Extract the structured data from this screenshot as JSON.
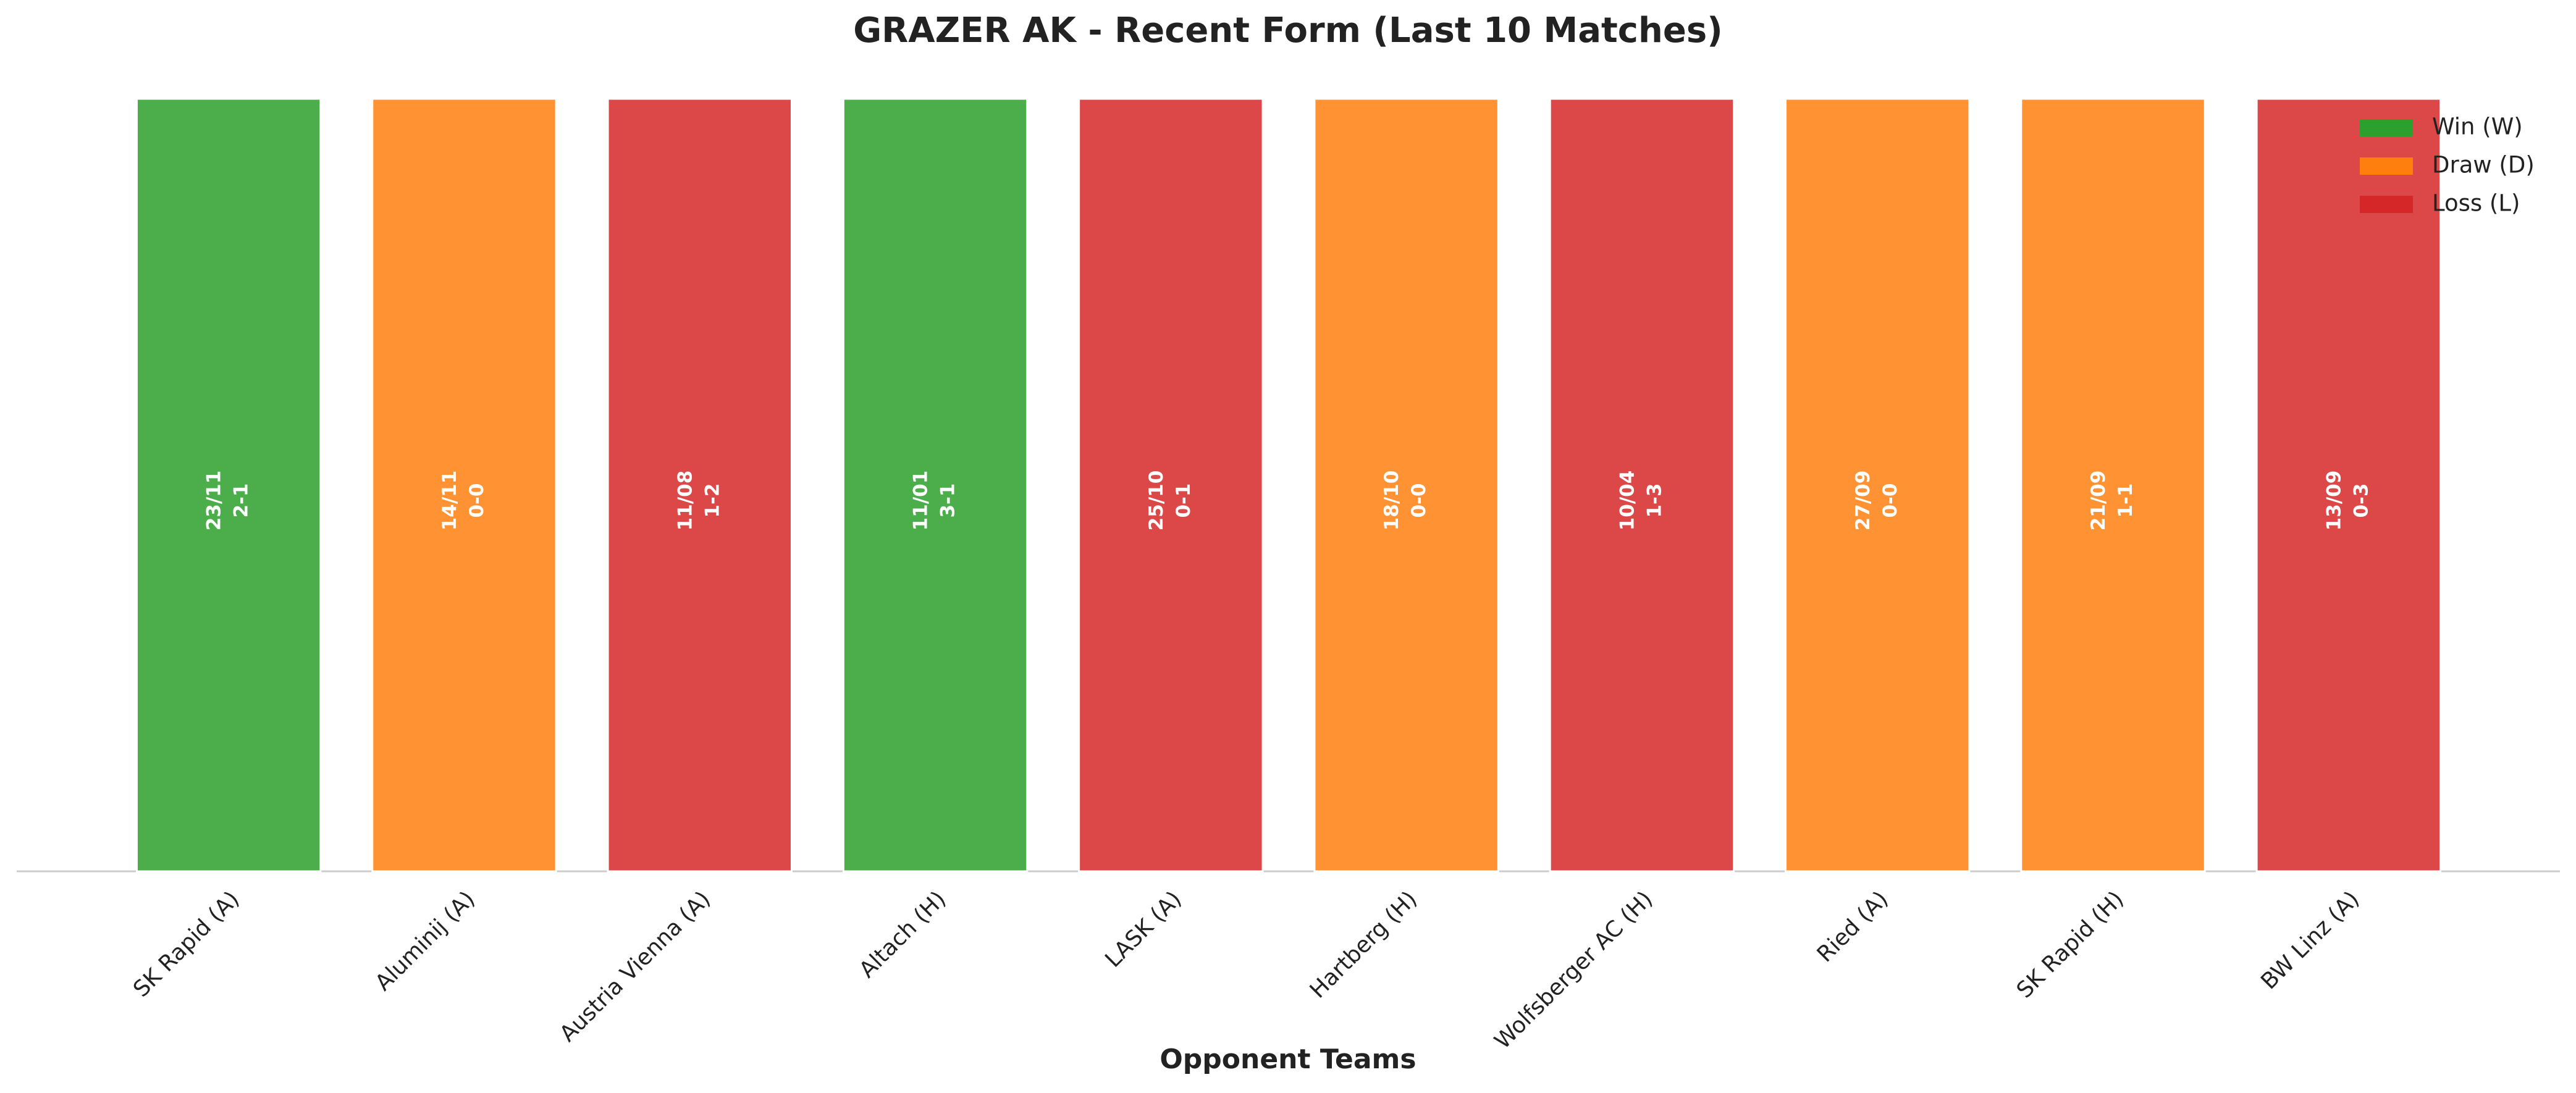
{
  "chart_data": {
    "type": "bar",
    "title": "GRAZER AK - Recent Form (Last 10 Matches)",
    "x_label": "Opponent Teams",
    "categories": [
      "SK Rapid (A)",
      "Aluminij (A)",
      "Austria Vienna (A)",
      "Altach (H)",
      "LASK (A)",
      "Hartberg (H)",
      "Wolfsberger AC (H)",
      "Ried (A)",
      "SK Rapid (H)",
      "BW Linz (A)"
    ],
    "dates": [
      "23/11",
      "14/11",
      "11/08",
      "11/01",
      "25/10",
      "18/10",
      "10/04",
      "27/09",
      "21/09",
      "13/09"
    ],
    "scores": [
      "2-1",
      "0-0",
      "1-2",
      "3-1",
      "0-1",
      "0-0",
      "1-3",
      "0-0",
      "1-1",
      "0-3"
    ],
    "ylim": [
      0,
      1
    ],
    "legend": "upper right",
    "series": [
      {
        "name": "Win (W)",
        "color": "#2ca02c",
        "values": [
          1,
          null,
          null,
          1,
          null,
          null,
          null,
          null,
          null,
          null
        ]
      },
      {
        "name": "Draw (D)",
        "color": "#ff7f0e",
        "values": [
          null,
          1,
          null,
          null,
          null,
          1,
          null,
          1,
          1,
          null
        ]
      },
      {
        "name": "Loss (L)",
        "color": "#d62728",
        "values": [
          null,
          null,
          1,
          null,
          1,
          null,
          1,
          null,
          null,
          1
        ]
      }
    ]
  }
}
